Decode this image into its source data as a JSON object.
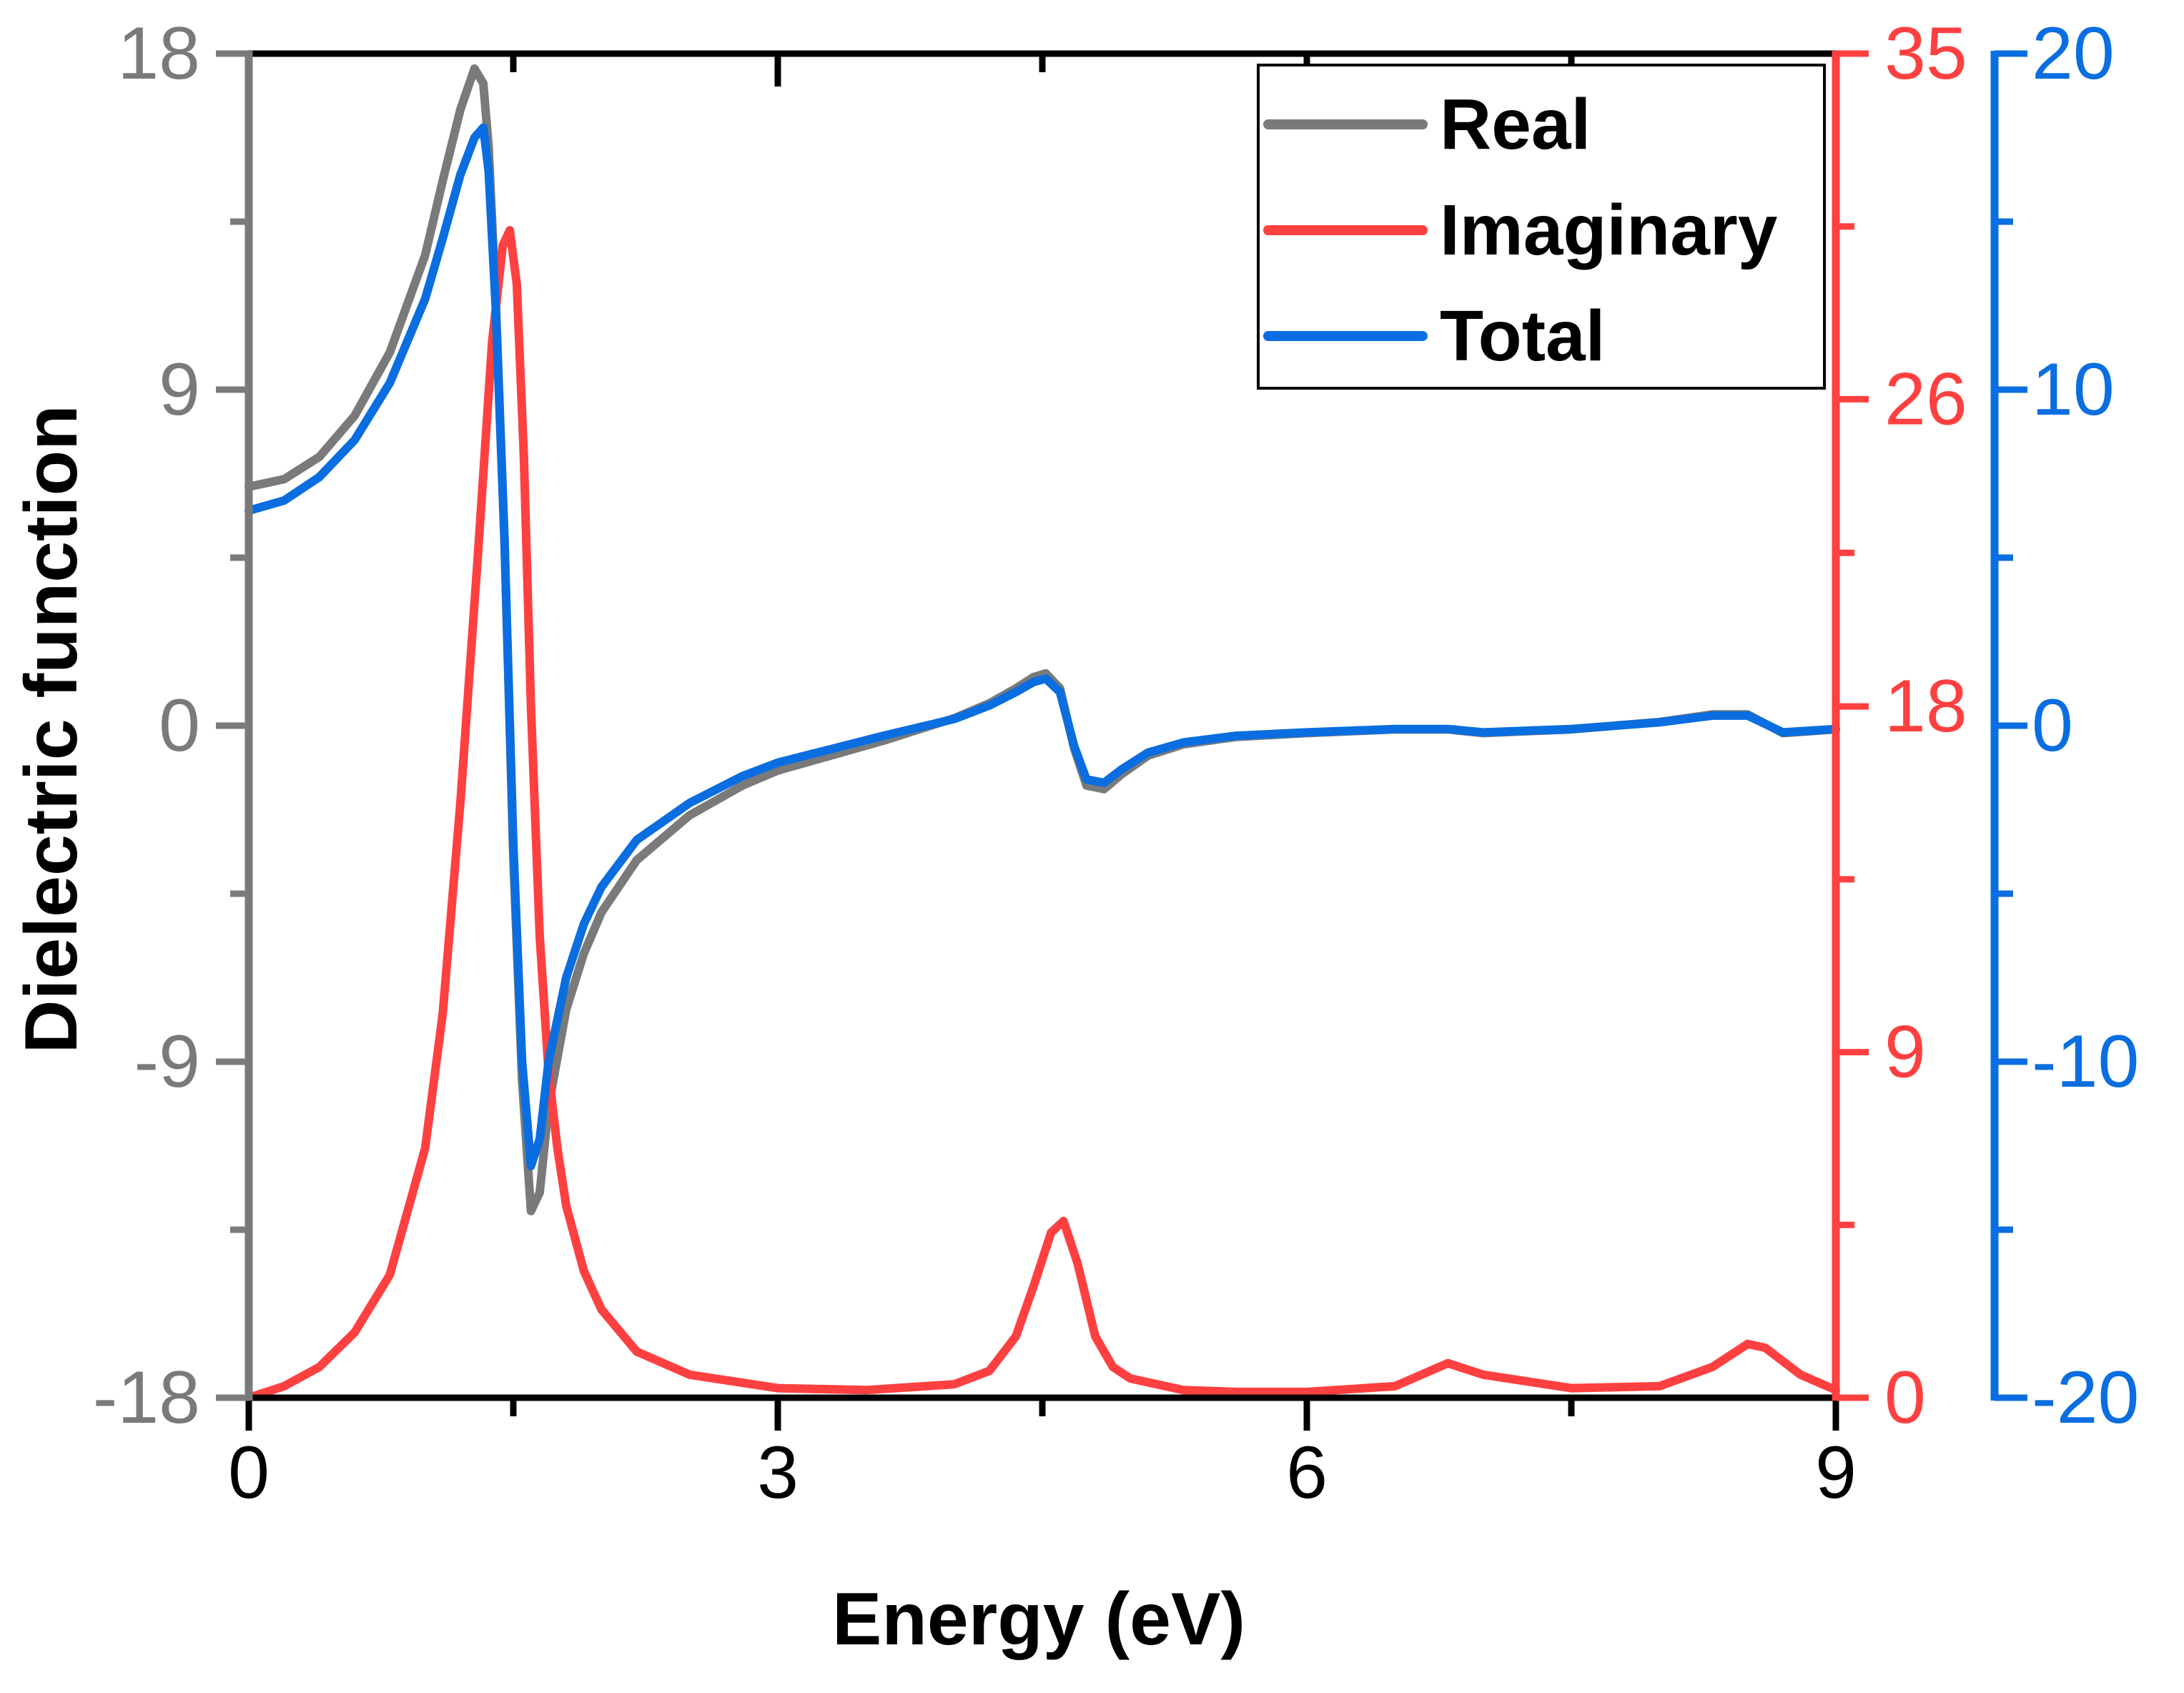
{
  "chart_data": {
    "type": "line",
    "title": "",
    "xlabel": "Energy (eV)",
    "ylabel": "Dielectric function",
    "xlim": [
      0,
      9
    ],
    "xticks": [
      0,
      3,
      6,
      9
    ],
    "xtick_labels": [
      "0",
      "3",
      "6",
      "9"
    ],
    "axes": [
      {
        "id": "left",
        "side": "left",
        "color": "#7a7a7a",
        "ylim": [
          -18,
          18
        ],
        "ticks": [
          -18,
          -9,
          0,
          9,
          18
        ],
        "tick_labels": [
          "-18",
          "-9",
          "0",
          "9",
          "18"
        ]
      },
      {
        "id": "right1",
        "side": "right",
        "color": "#ff4040",
        "ylim": [
          0,
          35
        ],
        "ticks": [
          0,
          9,
          18,
          26,
          35
        ],
        "tick_labels": [
          "0",
          "9",
          "18",
          "26",
          "35"
        ]
      },
      {
        "id": "right2",
        "side": "right-offset",
        "color": "#0a6ee0",
        "ylim": [
          -20,
          20
        ],
        "ticks": [
          -20,
          -10,
          0,
          10,
          20
        ],
        "tick_labels": [
          "-20",
          "-10",
          "0",
          "10",
          "20"
        ]
      }
    ],
    "legend": {
      "position": "top-right",
      "entries": [
        "Real",
        "Imaginary",
        "Total"
      ]
    },
    "series": [
      {
        "name": "Real",
        "axis": "left",
        "color": "#7a7a7a",
        "x": [
          0,
          0.2,
          0.4,
          0.6,
          0.8,
          1.0,
          1.1,
          1.2,
          1.28,
          1.33,
          1.36,
          1.4,
          1.45,
          1.5,
          1.55,
          1.6,
          1.65,
          1.7,
          1.8,
          1.9,
          2.0,
          2.2,
          2.5,
          2.8,
          3.0,
          3.3,
          3.6,
          4.0,
          4.2,
          4.35,
          4.45,
          4.52,
          4.6,
          4.68,
          4.75,
          4.85,
          4.95,
          5.1,
          5.3,
          5.6,
          6.0,
          6.5,
          6.8,
          7.0,
          7.5,
          8.0,
          8.3,
          8.5,
          8.7,
          9.0
        ],
        "y": [
          6.4,
          6.6,
          7.2,
          8.3,
          10.0,
          12.6,
          14.6,
          16.5,
          17.6,
          17.2,
          15.5,
          11.5,
          5.0,
          -3.5,
          -9.5,
          -13.0,
          -12.5,
          -10.2,
          -7.6,
          -6.1,
          -5.0,
          -3.6,
          -2.4,
          -1.6,
          -1.2,
          -0.8,
          -0.4,
          0.2,
          0.6,
          1.0,
          1.3,
          1.4,
          1.0,
          -0.6,
          -1.6,
          -1.7,
          -1.3,
          -0.8,
          -0.5,
          -0.3,
          -0.2,
          -0.1,
          -0.1,
          -0.2,
          -0.1,
          0.1,
          0.3,
          0.3,
          -0.2,
          -0.1
        ]
      },
      {
        "name": "Imaginary",
        "axis": "right1",
        "color": "#ff4040",
        "x": [
          0,
          0.2,
          0.4,
          0.6,
          0.8,
          1.0,
          1.1,
          1.2,
          1.3,
          1.38,
          1.44,
          1.48,
          1.52,
          1.56,
          1.6,
          1.65,
          1.7,
          1.75,
          1.8,
          1.9,
          2.0,
          2.2,
          2.5,
          3.0,
          3.5,
          4.0,
          4.2,
          4.35,
          4.45,
          4.55,
          4.62,
          4.7,
          4.8,
          4.9,
          5.0,
          5.3,
          5.6,
          6.0,
          6.5,
          6.8,
          7.0,
          7.5,
          8.0,
          8.3,
          8.5,
          8.6,
          8.8,
          9.0
        ],
        "y": [
          0,
          0.3,
          0.8,
          1.7,
          3.2,
          6.5,
          10.0,
          15.5,
          22.0,
          27.5,
          30.0,
          30.4,
          29.0,
          24.5,
          18.0,
          12.0,
          8.5,
          6.5,
          5.0,
          3.3,
          2.3,
          1.2,
          0.6,
          0.25,
          0.2,
          0.35,
          0.7,
          1.6,
          2.9,
          4.3,
          4.6,
          3.5,
          1.6,
          0.8,
          0.5,
          0.2,
          0.15,
          0.15,
          0.3,
          0.9,
          0.6,
          0.25,
          0.3,
          0.8,
          1.4,
          1.3,
          0.6,
          0.2
        ]
      },
      {
        "name": "Total",
        "axis": "right2",
        "color": "#0a6ee0",
        "x": [
          0,
          0.2,
          0.4,
          0.6,
          0.8,
          1.0,
          1.1,
          1.2,
          1.28,
          1.33,
          1.36,
          1.4,
          1.45,
          1.5,
          1.55,
          1.6,
          1.65,
          1.7,
          1.8,
          1.9,
          2.0,
          2.2,
          2.5,
          2.8,
          3.0,
          3.3,
          3.6,
          4.0,
          4.2,
          4.35,
          4.45,
          4.52,
          4.6,
          4.68,
          4.75,
          4.85,
          4.95,
          5.1,
          5.3,
          5.6,
          6.0,
          6.5,
          6.8,
          7.0,
          7.5,
          8.0,
          8.3,
          8.5,
          8.7,
          9.0
        ],
        "y": [
          6.4,
          6.7,
          7.4,
          8.5,
          10.2,
          12.7,
          14.5,
          16.4,
          17.5,
          17.8,
          16.5,
          12.5,
          5.5,
          -3.5,
          -10.0,
          -13.1,
          -12.3,
          -10.0,
          -7.5,
          -5.9,
          -4.8,
          -3.4,
          -2.3,
          -1.5,
          -1.1,
          -0.7,
          -0.3,
          0.2,
          0.6,
          1.0,
          1.3,
          1.4,
          1.0,
          -0.6,
          -1.6,
          -1.7,
          -1.3,
          -0.8,
          -0.5,
          -0.3,
          -0.2,
          -0.1,
          -0.1,
          -0.2,
          -0.1,
          0.1,
          0.3,
          0.3,
          -0.2,
          -0.1
        ]
      }
    ]
  }
}
